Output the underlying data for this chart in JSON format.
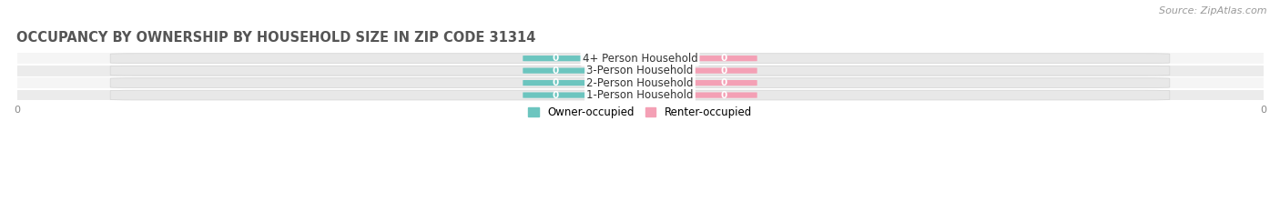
{
  "title": "OCCUPANCY BY OWNERSHIP BY HOUSEHOLD SIZE IN ZIP CODE 31314",
  "source": "Source: ZipAtlas.com",
  "categories": [
    "1-Person Household",
    "2-Person Household",
    "3-Person Household",
    "4+ Person Household"
  ],
  "owner_values": [
    0,
    0,
    0,
    0
  ],
  "renter_values": [
    0,
    0,
    0,
    0
  ],
  "owner_color": "#6CC5BF",
  "renter_color": "#F4A0B5",
  "owner_label": "Owner-occupied",
  "renter_label": "Renter-occupied",
  "row_bg_light": "#F5F5F5",
  "row_bg_dark": "#EBEBEB",
  "pill_bg_color": "#E8E8E8",
  "pill_border_color": "#D5D5D5",
  "title_fontsize": 10.5,
  "source_fontsize": 8,
  "label_fontsize": 8.5,
  "tick_fontsize": 8,
  "xlim": [
    -1,
    1
  ],
  "figsize": [
    14.06,
    2.33
  ],
  "dpi": 100
}
